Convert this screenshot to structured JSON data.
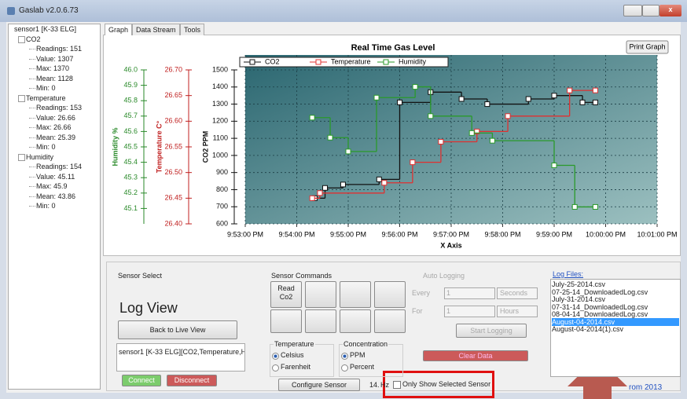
{
  "window": {
    "title": "Gaslab v2.0.6.73"
  },
  "tree": {
    "root": "sensor1 [K-33 ELG]",
    "groups": [
      {
        "name": "CO2",
        "items": [
          "Readings: 151",
          "Value: 1307",
          "Max: 1370",
          "Mean: 1128",
          "Min: 0"
        ]
      },
      {
        "name": "Temperature",
        "items": [
          "Readings: 153",
          "Value: 26.66",
          "Max: 26.66",
          "Mean: 25.39",
          "Min: 0"
        ]
      },
      {
        "name": "Humidity",
        "items": [
          "Readings: 154",
          "Value: 45.11",
          "Max: 45.9",
          "Mean: 43.86",
          "Min: 0"
        ]
      }
    ]
  },
  "tabs": [
    "Graph",
    "Data Stream",
    "Tools"
  ],
  "chart_data": {
    "type": "line",
    "title": "Real Time Gas Level",
    "print_button": "Print Graph",
    "x_label": "X Axis",
    "xlim": [
      53,
      61
    ],
    "xticks": [
      {
        "value": 53,
        "label": "9:53:00 PM"
      },
      {
        "value": 54,
        "label": "9:54:00 PM"
      },
      {
        "value": 55,
        "label": "9:55:00 PM"
      },
      {
        "value": 56,
        "label": "9:56:00 PM"
      },
      {
        "value": 57,
        "label": "9:57:00 PM"
      },
      {
        "value": 58,
        "label": "9:58:00 PM"
      },
      {
        "value": 59,
        "label": "9:59:00 PM"
      },
      {
        "value": 60,
        "label": "10:00:00 PM"
      },
      {
        "value": 61,
        "label": "10:01:00 PM"
      }
    ],
    "y_label": "CO2 PPM",
    "ylim": [
      600,
      1500
    ],
    "yticks": [
      600,
      700,
      800,
      900,
      1000,
      1100,
      1200,
      1300,
      1400,
      1500
    ],
    "y2_label": "Temperature C°",
    "y2lim": [
      26.4,
      26.7
    ],
    "y2ticks": [
      {
        "value": 26.4,
        "label": "26.40"
      },
      26.45,
      {
        "value": 26.5,
        "label": "26.50"
      },
      26.55,
      {
        "value": 26.6,
        "label": "26.60"
      },
      26.65,
      {
        "value": 26.7,
        "label": "26.70"
      }
    ],
    "y3_label": "Humidity %",
    "y3lim": [
      45,
      46
    ],
    "y3ticks": [
      45.1,
      45.2,
      45.3,
      45.4,
      45.5,
      45.6,
      45.7,
      45.8,
      45.9,
      {
        "value": 46,
        "label": "46.0"
      }
    ],
    "grid": true,
    "series": [
      {
        "name": "CO2",
        "color": "#111111",
        "axis": "y",
        "x": [
          54.35,
          54.55,
          54.9,
          55.6,
          56.0,
          56.6,
          57.2,
          57.7,
          58.5,
          59.0,
          59.55,
          59.8
        ],
        "values": [
          750,
          810,
          830,
          860,
          1310,
          1370,
          1330,
          1300,
          1330,
          1350,
          1310,
          1310
        ]
      },
      {
        "name": "Temperature",
        "color": "#e03030",
        "axis": "y2",
        "x": [
          54.3,
          54.45,
          55.7,
          56.25,
          56.8,
          57.5,
          58.1,
          59.3,
          59.8
        ],
        "values": [
          26.45,
          26.46,
          26.48,
          26.52,
          26.56,
          26.58,
          26.61,
          26.66,
          26.66
        ]
      },
      {
        "name": "Humidity",
        "color": "#2a9a2a",
        "axis": "y3",
        "x": [
          54.3,
          54.65,
          55.0,
          55.55,
          56.3,
          56.6,
          57.4,
          57.8,
          59.0,
          59.4,
          59.8
        ],
        "values": [
          45.69,
          45.56,
          45.47,
          45.82,
          45.89,
          45.7,
          45.59,
          45.54,
          45.38,
          45.11,
          45.11
        ]
      }
    ]
  },
  "sensor_select": {
    "title": "Sensor Select",
    "mode": "Log View",
    "back_button": "Back to Live View",
    "sensor_item": "sensor1 [K-33 ELG][CO2,Temperature,Humi",
    "connect": "Connect",
    "disconnect": "Disconnect"
  },
  "sensor_commands": {
    "title": "Sensor Commands",
    "read_button": "Read Co2",
    "configure": "Configure Sensor",
    "temperature": {
      "title": "Temperature",
      "options": [
        "Celsius",
        "Farenheit"
      ]
    },
    "concentration": {
      "title": "Concentration",
      "options": [
        "PPM",
        "Percent"
      ]
    }
  },
  "auto_logging": {
    "title": "Auto Logging",
    "every_label": "Every",
    "every_value": "1",
    "every_unit": "Seconds",
    "for_label": "For",
    "for_value": "1",
    "for_unit": "Hours",
    "start": "Start Logging",
    "clear": "Clear Data"
  },
  "log_files": {
    "title": "Log Files:",
    "files": [
      "July-25-2014.csv",
      "07-25-14_DownloadedLog.csv",
      "July-31-2014.csv",
      "07-31-14_DownloadedLog.csv",
      "08-04-14_DownloadedLog.csv",
      "August-04-2014.csv",
      "August-04-2014(1).csv"
    ],
    "selected": 5
  },
  "status": {
    "rate": "14.",
    "rate_unit": "Hz",
    "only_selected": "Only Show Selected Sensor",
    "footer": "rom 2013"
  }
}
